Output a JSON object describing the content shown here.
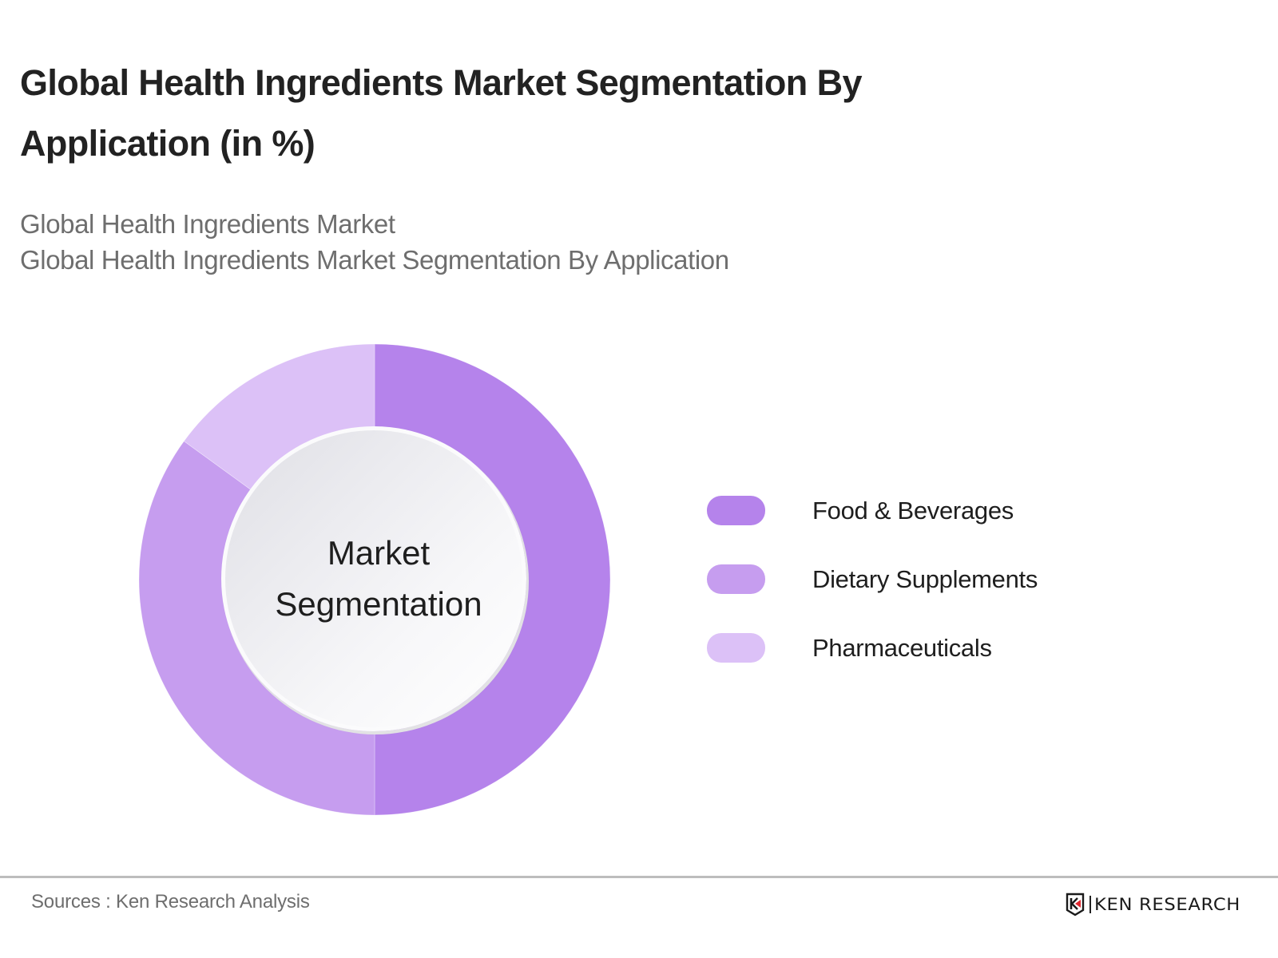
{
  "header": {
    "title_lines": [
      "Global Health Ingredients Market Segmentation By",
      "Application (in %)"
    ],
    "subtitle_lines": [
      "Global Health Ingredients Market",
      "Global Health Ingredients Market Segmentation By Application"
    ]
  },
  "chart_data": {
    "type": "pie",
    "variant": "donut",
    "title": "Global Health Ingredients Market Segmentation By Application (in %)",
    "subtitle": "Global Health Ingredients Market Segmentation By Application",
    "center_label": [
      "Market",
      "Segmentation"
    ],
    "categories": [
      "Food & Beverages",
      "Dietary Supplements",
      "Pharmaceuticals"
    ],
    "values": [
      50,
      35,
      15
    ],
    "unit": "%",
    "colors": [
      "#B583EB",
      "#C69DEF",
      "#DCC1F7"
    ],
    "start_angle_deg": 0,
    "direction": "clockwise",
    "legend_position": "right",
    "data_labels_shown": false
  },
  "legend": {
    "items": [
      {
        "label": "Food & Beverages",
        "color": "#B583EB"
      },
      {
        "label": "Dietary Supplements",
        "color": "#C69DEF"
      },
      {
        "label": "Pharmaceuticals",
        "color": "#DCC1F7"
      }
    ]
  },
  "footer": {
    "source": "Sources : Ken Research Analysis",
    "logo_text": "KEN RESEARCH",
    "logo_accent_color": "#E0272F",
    "logo_icon": "ken-research-shield-logo-icon"
  }
}
